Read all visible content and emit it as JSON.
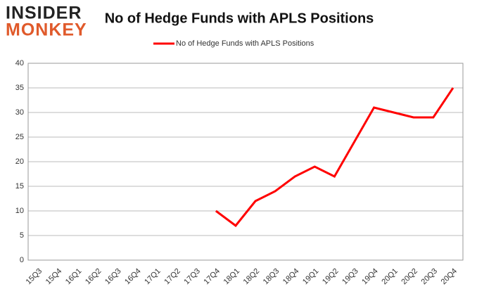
{
  "logo": {
    "line1": "INSIDER",
    "line2": "MONKEY"
  },
  "chart_data": {
    "type": "line",
    "title": "No of Hedge Funds with APLS Positions",
    "categories": [
      "15Q3",
      "15Q4",
      "16Q1",
      "16Q2",
      "16Q3",
      "16Q4",
      "17Q1",
      "17Q2",
      "17Q3",
      "17Q4",
      "18Q1",
      "18Q2",
      "18Q3",
      "18Q4",
      "19Q1",
      "19Q2",
      "19Q3",
      "19Q4",
      "20Q1",
      "20Q2",
      "20Q3",
      "20Q4"
    ],
    "series": [
      {
        "name": "No of Hedge Funds with APLS Positions",
        "color": "#ff0000",
        "values": [
          null,
          null,
          null,
          null,
          null,
          null,
          null,
          null,
          null,
          10,
          7,
          12,
          14,
          17,
          19,
          17,
          24,
          31,
          30,
          29,
          29,
          35
        ]
      }
    ],
    "ylim": [
      0,
      40
    ],
    "yticks": [
      0,
      5,
      10,
      15,
      20,
      25,
      30,
      35,
      40
    ],
    "grid": true,
    "legend": "top"
  }
}
